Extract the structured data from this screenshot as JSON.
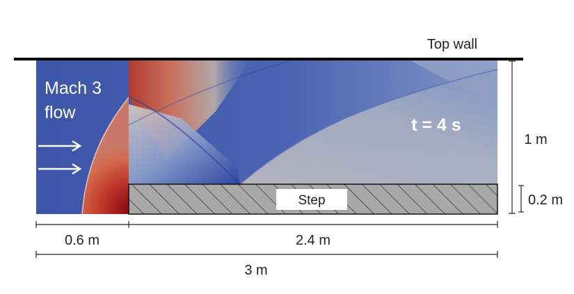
{
  "labels": {
    "top_wall": "Top wall",
    "inflow_line1": "Mach 3",
    "inflow_line2": "flow",
    "time": "t = 4 s",
    "step": "Step",
    "height_total": "1 m",
    "height_step": "0.2 m",
    "length_inlet": "0.6 m",
    "length_step": "2.4 m",
    "length_total": "3 m"
  },
  "colors": {
    "flow_base": "#3d55a8",
    "flow_high": "#c0392b",
    "flow_peak": "#8b0a12",
    "flow_mid": "#a8b0be",
    "step_fill": "#a8a8a8",
    "wall": "#000000"
  }
}
